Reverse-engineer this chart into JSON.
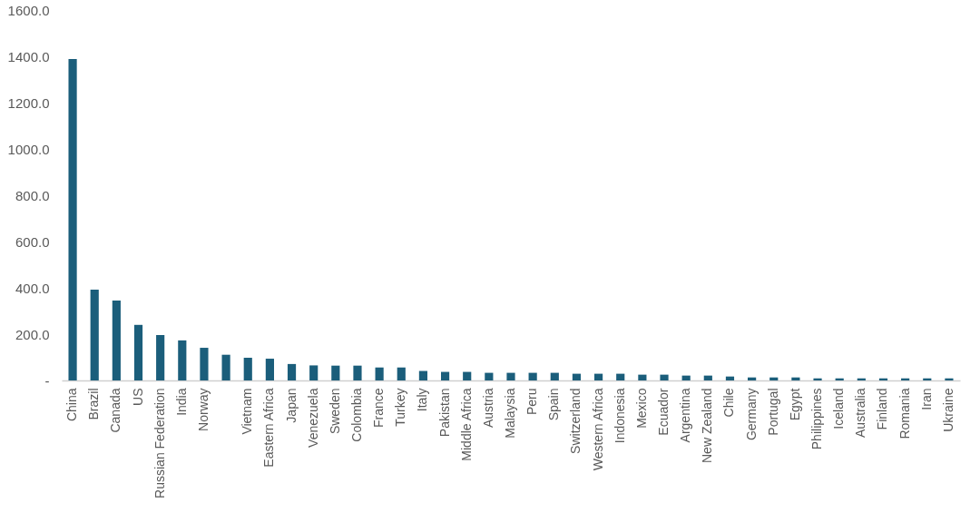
{
  "chart_data": {
    "type": "bar",
    "categories": [
      "China",
      "Brazil",
      "Canada",
      "US",
      "Russian Federation",
      "India",
      "Norway",
      null,
      "Vietnam",
      "Eastern Africa",
      "Japan",
      "Venezuela",
      "Sweden",
      "Colombia",
      "France",
      "Turkey",
      "Italy",
      "Pakistan",
      "Middle Africa",
      "Austria",
      "Malaysia",
      "Peru",
      "Spain",
      "Switzerland",
      "Western Africa",
      "Indonesia",
      "Mexico",
      "Ecuador",
      "Argentina",
      "New Zealand",
      "Chile",
      "Germany",
      "Portugal",
      "Egypt",
      "Philippines",
      "Iceland",
      "Australia",
      "Finland",
      "Romania",
      "Iran",
      "Ukraine"
    ],
    "values": [
      1388,
      392,
      345,
      240,
      196,
      173,
      141,
      111,
      98,
      94,
      71,
      65,
      64,
      64,
      56,
      56,
      41,
      37,
      37,
      33,
      33,
      33,
      33,
      29,
      29,
      29,
      25,
      25,
      21,
      21,
      17,
      13,
      13,
      13,
      9,
      9,
      9,
      9,
      9,
      9,
      9
    ],
    "color": "#1b5e7b",
    "ylim": [
      0,
      1600
    ],
    "yticks": [
      {
        "value": 0,
        "label": "-"
      },
      {
        "value": 200,
        "label": "200.0"
      },
      {
        "value": 400,
        "label": "400.0"
      },
      {
        "value": 600,
        "label": "600.0"
      },
      {
        "value": 800,
        "label": "800.0"
      },
      {
        "value": 1000,
        "label": "1000.0"
      },
      {
        "value": 1200,
        "label": "1200.0"
      },
      {
        "value": 1400,
        "label": "1400.0"
      },
      {
        "value": 1600,
        "label": "1600.0"
      }
    ]
  }
}
